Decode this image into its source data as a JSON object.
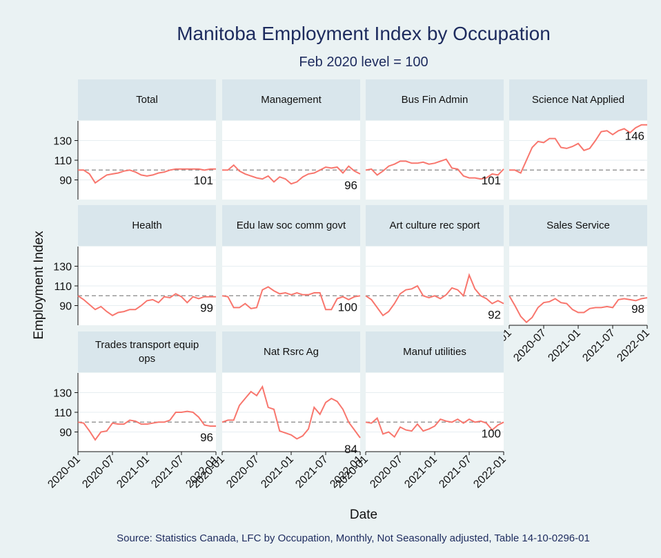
{
  "title": "Manitoba Employment Index by Occupation",
  "subtitle": "Feb 2020 level = 100",
  "source": "Source: Statistics Canada, LFC by Occupation, Monthly, Not Seasonally adjusted, Table 14-10-0296-01",
  "chart_data": {
    "type": "line",
    "y_label": "Employment Index",
    "x_label": "Date",
    "color": "#f8766d",
    "reference_line": 100,
    "x": [
      "2020-01",
      "2020-02",
      "2020-03",
      "2020-04",
      "2020-05",
      "2020-06",
      "2020-07",
      "2020-08",
      "2020-09",
      "2020-10",
      "2020-11",
      "2020-12",
      "2021-01",
      "2021-02",
      "2021-03",
      "2021-04",
      "2021-05",
      "2021-06",
      "2021-07",
      "2021-08",
      "2021-09",
      "2021-10",
      "2021-11",
      "2021-12",
      "2022-01"
    ],
    "xlim": [
      "2020-01",
      "2022-01"
    ],
    "xticks": [
      "2020-01",
      "2020-07",
      "2021-01",
      "2021-07",
      "2022-01"
    ],
    "ylim": [
      70,
      150
    ],
    "yticks": [
      90,
      110,
      130
    ],
    "panels": [
      {
        "title": "Total",
        "values": [
          100,
          100,
          96,
          87,
          91,
          95,
          96,
          97,
          99,
          100,
          98,
          95,
          94,
          95,
          97,
          98,
          100,
          101,
          101,
          101,
          101,
          101,
          100,
          101,
          101
        ]
      },
      {
        "title": "Management",
        "values": [
          100,
          100,
          105,
          99,
          96,
          94,
          92,
          91,
          94,
          88,
          93,
          91,
          86,
          88,
          93,
          96,
          97,
          100,
          103,
          102,
          103,
          97,
          104,
          99,
          96
        ]
      },
      {
        "title": "Bus Fin Admin",
        "values": [
          100,
          101,
          95,
          99,
          104,
          106,
          109,
          109,
          107,
          107,
          108,
          106,
          107,
          109,
          111,
          102,
          101,
          94,
          92,
          92,
          91,
          92,
          96,
          95,
          101
        ]
      },
      {
        "title": "Science Nat Applied",
        "values": [
          100,
          100,
          97,
          110,
          123,
          129,
          128,
          132,
          132,
          123,
          122,
          124,
          127,
          120,
          122,
          130,
          139,
          140,
          136,
          140,
          142,
          138,
          143,
          146,
          146
        ]
      },
      {
        "title": "Health",
        "values": [
          100,
          96,
          91,
          86,
          89,
          84,
          80,
          83,
          84,
          86,
          86,
          90,
          95,
          96,
          93,
          99,
          98,
          102,
          99,
          93,
          99,
          97,
          99,
          99,
          99
        ]
      },
      {
        "title": "Edu law soc comm govt",
        "values": [
          100,
          99,
          88,
          88,
          92,
          87,
          88,
          106,
          109,
          105,
          102,
          103,
          101,
          103,
          101,
          101,
          103,
          103,
          86,
          86,
          97,
          99,
          96,
          99,
          100
        ]
      },
      {
        "title": "Art culture rec sport",
        "values": [
          100,
          96,
          88,
          80,
          84,
          92,
          102,
          106,
          107,
          110,
          100,
          98,
          100,
          97,
          101,
          108,
          106,
          100,
          121,
          107,
          100,
          97,
          92,
          95,
          92
        ]
      },
      {
        "title": "Sales Service",
        "values": [
          100,
          90,
          79,
          73,
          78,
          88,
          93,
          94,
          97,
          93,
          92,
          86,
          83,
          83,
          87,
          88,
          88,
          89,
          88,
          96,
          97,
          96,
          95,
          97,
          98
        ]
      },
      {
        "title": "Trades transport equip ops",
        "values": [
          100,
          99,
          91,
          82,
          90,
          91,
          99,
          98,
          98,
          102,
          101,
          98,
          98,
          99,
          100,
          100,
          102,
          110,
          110,
          111,
          110,
          105,
          97,
          96,
          96
        ]
      },
      {
        "title": "Nat Rsrc Ag",
        "values": [
          100,
          102,
          102,
          117,
          124,
          131,
          127,
          136,
          115,
          113,
          91,
          89,
          87,
          83,
          86,
          93,
          115,
          108,
          120,
          124,
          121,
          113,
          100,
          92,
          84
        ]
      },
      {
        "title": "Manuf utilities",
        "values": [
          100,
          99,
          104,
          88,
          90,
          85,
          95,
          92,
          91,
          98,
          91,
          93,
          96,
          103,
          101,
          100,
          103,
          99,
          103,
          100,
          101,
          99,
          92,
          97,
          100
        ]
      }
    ]
  }
}
